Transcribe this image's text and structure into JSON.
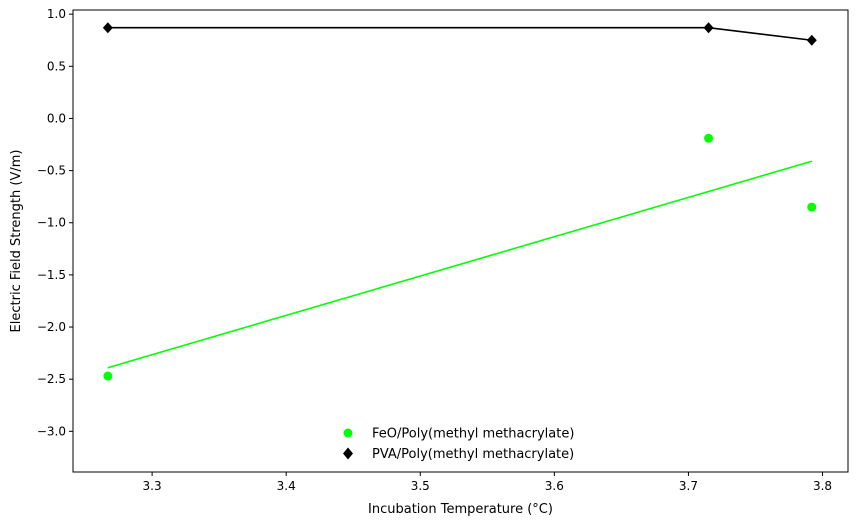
{
  "chart_data": {
    "type": "scatter",
    "xlabel": "Incubation Temperature (°C)",
    "ylabel": "Electric Field Strength (V/m)",
    "xlim": [
      3.241,
      3.819
    ],
    "ylim": [
      -3.39,
      1.04
    ],
    "x_ticks": [
      "3.3",
      "3.4",
      "3.5",
      "3.6",
      "3.7",
      "3.8"
    ],
    "y_ticks": [
      "1.0",
      "0.5",
      "0.0",
      "−0.5",
      "−1.0",
      "−1.5",
      "−2.0",
      "−2.5",
      "−3.0"
    ],
    "x_tick_values": [
      3.3,
      3.4,
      3.5,
      3.6,
      3.7,
      3.8
    ],
    "y_tick_values": [
      1.0,
      0.5,
      0.0,
      -0.5,
      -1.0,
      -1.5,
      -2.0,
      -2.5,
      -3.0
    ],
    "grid": false,
    "legend_position": "bottom-center",
    "series": [
      {
        "name": "FeO/Poly(methyl methacrylate)",
        "marker": "circle",
        "color": "#00ff00",
        "x": [
          3.267,
          3.715,
          3.792
        ],
        "y": [
          -2.47,
          -0.19,
          -0.85
        ],
        "trendline": {
          "x": [
            3.267,
            3.792
          ],
          "y": [
            -2.39,
            -0.41
          ]
        }
      },
      {
        "name": "PVA/Poly(methyl methacrylate)",
        "marker": "diamond",
        "color": "#000000",
        "connected": true,
        "x": [
          3.267,
          3.715,
          3.792
        ],
        "y": [
          0.87,
          0.87,
          0.75
        ]
      }
    ]
  }
}
